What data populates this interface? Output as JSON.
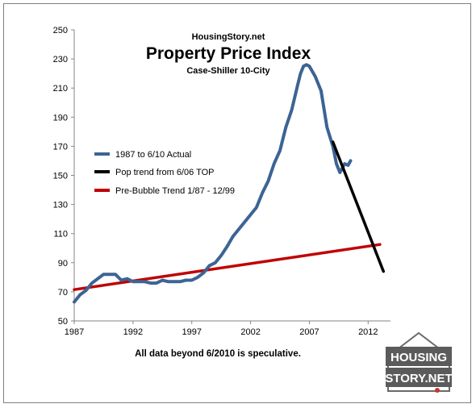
{
  "chart_data": {
    "type": "line",
    "site": "HousingStory.net",
    "title": "Property Price Index",
    "subtitle": "Case-Shiller 10-City",
    "footnote": "All data beyond 6/2010 is speculative.",
    "xlim": [
      1987,
      2013.9
    ],
    "ylim": [
      50,
      250
    ],
    "x_ticks": [
      "1987",
      "1992",
      "1997",
      "2002",
      "2007",
      "2012"
    ],
    "y_ticks": [
      "50",
      "70",
      "90",
      "110",
      "130",
      "150",
      "170",
      "190",
      "210",
      "230",
      "250"
    ],
    "legend_position": "left",
    "series": [
      {
        "name": "1987 to 6/10 Actual",
        "color": "#3c6494",
        "x": [
          1987.0,
          1987.5,
          1988.0,
          1988.5,
          1989.0,
          1989.5,
          1990.0,
          1990.5,
          1991.0,
          1991.5,
          1992.0,
          1992.5,
          1993.0,
          1993.5,
          1994.0,
          1994.5,
          1995.0,
          1995.5,
          1996.0,
          1996.5,
          1997.0,
          1997.5,
          1998.0,
          1998.5,
          1999.0,
          1999.5,
          2000.0,
          2000.5,
          2001.0,
          2001.5,
          2002.0,
          2002.5,
          2003.0,
          2003.5,
          2004.0,
          2004.5,
          2005.0,
          2005.5,
          2006.0,
          2006.25,
          2006.5,
          2006.75,
          2007.0,
          2007.5,
          2008.0,
          2008.5,
          2009.0,
          2009.3,
          2009.6,
          2010.0,
          2010.3,
          2010.5
        ],
        "y": [
          63,
          68,
          71,
          76,
          79,
          82,
          82,
          82,
          78,
          79,
          77,
          77,
          77,
          76,
          76,
          78,
          77,
          77,
          77,
          78,
          78,
          80,
          83,
          88,
          90,
          95,
          101,
          108,
          113,
          118,
          123,
          128,
          138,
          146,
          158,
          167,
          183,
          195,
          212,
          220,
          225,
          226,
          225,
          218,
          208,
          183,
          170,
          158,
          152,
          158,
          157,
          160
        ]
      },
      {
        "name": "Pop trend from 6/06 TOP",
        "color": "#000000",
        "x": [
          2009.0,
          2013.3
        ],
        "y": [
          173,
          84
        ]
      },
      {
        "name": "Pre-Bubble Trend 1/87 - 12/99",
        "color": "#c00000",
        "x": [
          1987.0,
          2013.0
        ],
        "y": [
          71.5,
          102.5
        ]
      }
    ]
  },
  "logo": {
    "line1": "HOUSING",
    "line2": "STORY.NET"
  }
}
